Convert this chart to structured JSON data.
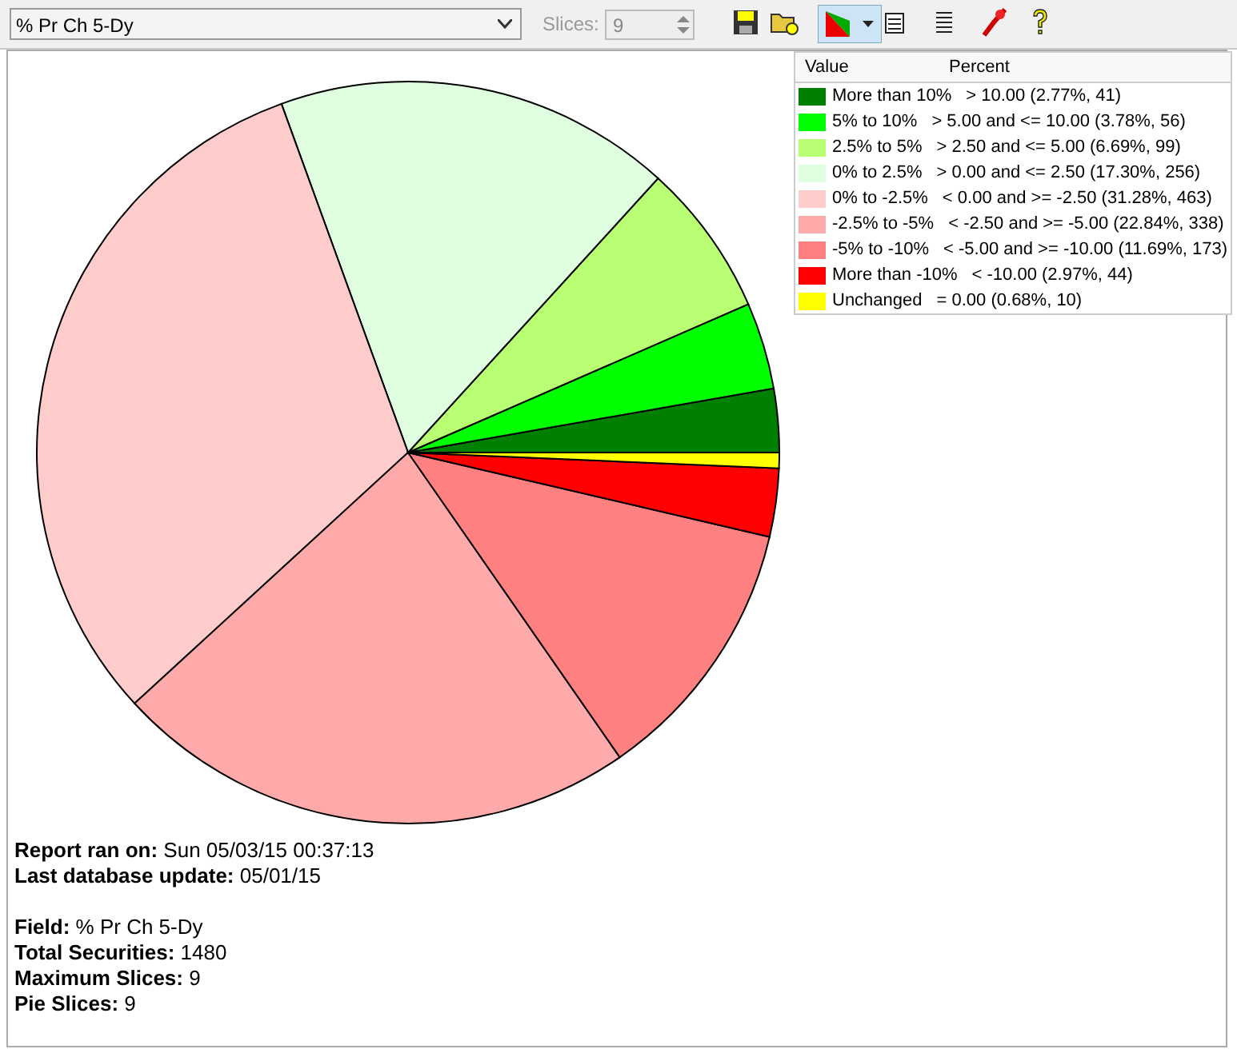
{
  "chart_data": {
    "type": "pie",
    "title": "% Pr Ch 5-Dy",
    "categories": [
      "More than 10%",
      "5% to 10%",
      "2.5% to 5%",
      "0% to 2.5%",
      "0% to -2.5%",
      "-2.5% to -5%",
      "-5% to -10%",
      "More than -10%",
      "Unchanged"
    ],
    "values": [
      2.77,
      3.78,
      6.69,
      17.3,
      31.28,
      22.84,
      11.69,
      2.97,
      0.68
    ],
    "colors": [
      "#008000",
      "#00ff00",
      "#b9ff73",
      "#e0ffe0",
      "#ffcccc",
      "#ffaaaa",
      "#ff8080",
      "#ff0000",
      "#ffff00"
    ],
    "value_labels": [
      "> 10.00 (2.77%, 41)",
      "> 5.00 and <= 10.00 (3.78%, 56)",
      "> 2.50 and <= 5.00 (6.69%, 99)",
      "> 0.00 and <= 2.50 (17.30%, 256)",
      "< 0.00 and >= -2.50 (31.28%, 463)",
      "< -2.50 and >= -5.00 (22.84%, 338)",
      "< -5.00 and >= -10.00 (11.69%, 173)",
      "< -10.00 (2.97%, 44)",
      "= 0.00 (0.68%, 10)"
    ],
    "legend": "top right",
    "annotations": [
      "Slices:",
      "9",
      "Value",
      "Percent",
      "Report ran on: Sun 05/03/15 00:37:13",
      "Last database update: 05/01/15",
      "Field: % Pr Ch 5-Dy",
      "Total Securities: 1480",
      "Maximum Slices: 9",
      "Pie Slices: 9"
    ]
  }
}
